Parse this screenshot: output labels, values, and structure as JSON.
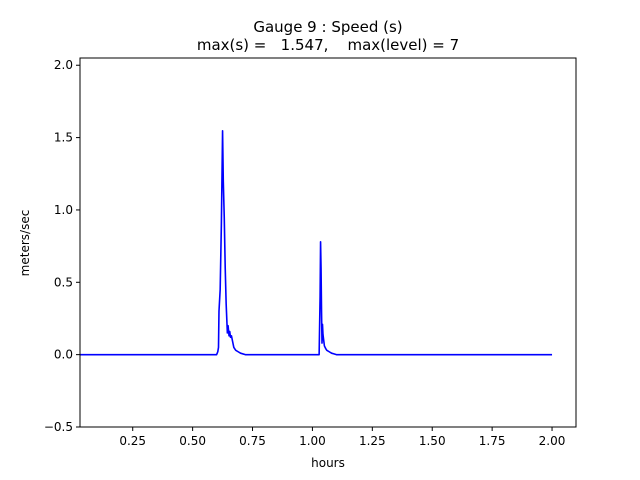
{
  "chart_data": {
    "type": "line",
    "title": "Gauge 9 : Speed (s)",
    "subtitle": "max(s) =   1.547,    max(level) = 7",
    "xlabel": "hours",
    "ylabel": "meters/sec",
    "xlim": [
      0.03,
      2.1
    ],
    "ylim": [
      -0.5,
      2.05
    ],
    "xticks": [
      0.25,
      0.5,
      0.75,
      1.0,
      1.25,
      1.5,
      1.75,
      2.0
    ],
    "xtick_labels": [
      "0.25",
      "0.50",
      "0.75",
      "1.00",
      "1.25",
      "1.50",
      "1.75",
      "2.00"
    ],
    "yticks": [
      -0.5,
      0.0,
      0.5,
      1.0,
      1.5,
      2.0
    ],
    "ytick_labels": [
      "−0.5",
      "0.0",
      "0.5",
      "1.0",
      "1.5",
      "2.0"
    ],
    "grid": false,
    "legend": "none",
    "series": [
      {
        "color": "#0000ff",
        "x": [
          0.03,
          0.3,
          0.6,
          0.605,
          0.608,
          0.61,
          0.615,
          0.62,
          0.625,
          0.628,
          0.632,
          0.636,
          0.64,
          0.645,
          0.648,
          0.652,
          0.655,
          0.658,
          0.662,
          0.667,
          0.672,
          0.68,
          0.69,
          0.7,
          0.72,
          0.75,
          0.8,
          0.9,
          1.0,
          1.028,
          1.032,
          1.034,
          1.036,
          1.038,
          1.04,
          1.042,
          1.044,
          1.047,
          1.05,
          1.053,
          1.056,
          1.06,
          1.07,
          1.08,
          1.09,
          1.1,
          1.2,
          1.5,
          2.0
        ],
        "y": [
          0.0,
          0.0,
          0.0,
          0.02,
          0.05,
          0.3,
          0.45,
          0.9,
          1.547,
          1.2,
          0.95,
          0.6,
          0.35,
          0.15,
          0.2,
          0.13,
          0.16,
          0.12,
          0.13,
          0.09,
          0.05,
          0.03,
          0.02,
          0.01,
          0.0,
          0.0,
          0.0,
          0.0,
          0.0,
          0.0,
          0.4,
          0.78,
          0.6,
          0.3,
          0.08,
          0.21,
          0.14,
          0.1,
          0.06,
          0.05,
          0.04,
          0.03,
          0.02,
          0.01,
          0.005,
          0.0,
          0.0,
          0.0,
          0.0
        ]
      }
    ]
  }
}
